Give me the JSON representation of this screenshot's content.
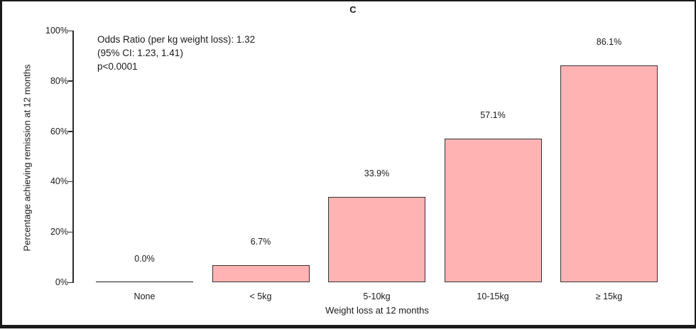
{
  "title": "C",
  "annotation": {
    "line1": "Odds Ratio (per kg weight loss): 1.32",
    "line2": "(95% CI: 1.23, 1.41)",
    "line3": "p<0.0001"
  },
  "chart_data": {
    "type": "bar",
    "title": "C",
    "categories": [
      "None",
      "< 5kg",
      "5-10kg",
      "10-15kg",
      "≥ 15kg"
    ],
    "values": [
      0.0,
      6.7,
      33.9,
      57.1,
      86.1
    ],
    "value_labels": [
      "0.0%",
      "6.7%",
      "33.9%",
      "57.1%",
      "86.1%"
    ],
    "xlabel": "Weight loss at 12 months",
    "ylabel": "Percentage achieving remission at 12 months",
    "ylim": [
      0,
      100
    ],
    "ytick_values": [
      0,
      20,
      40,
      60,
      80,
      100
    ],
    "ytick_labels": [
      "0%",
      "20%",
      "40%",
      "60%",
      "80%",
      "100%"
    ],
    "grid": false,
    "legend_position": "none",
    "bar_fill_color": "#ffb3b3",
    "bar_border_color": "#333333",
    "axis_color": "#2b2b2b",
    "text_color": "#1a1a1a",
    "annotation_text": "Odds Ratio (per kg weight loss): 1.32\n(95% CI: 1.23, 1.41)\np<0.0001"
  }
}
